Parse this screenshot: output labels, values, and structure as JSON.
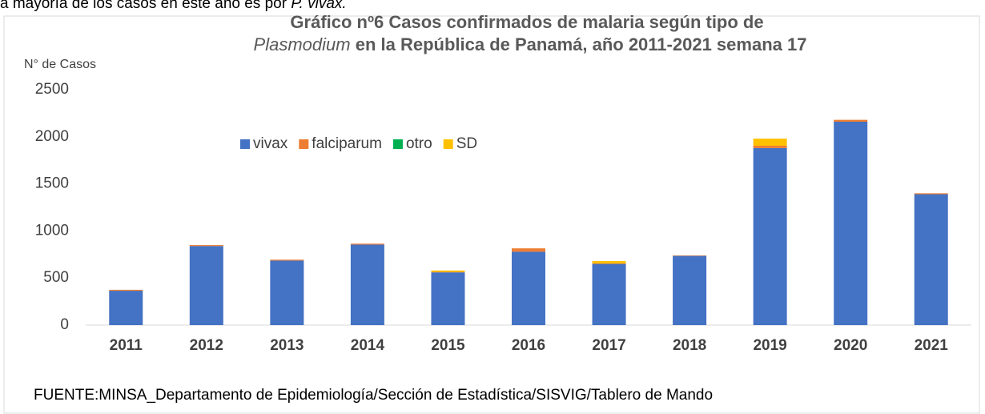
{
  "caption_fragment": [
    "a mayoría de los casos en este año es por ",
    "P. vivax."
  ],
  "chart_data": {
    "type": "stacked_bar",
    "title": [
      "Gráfico nº6 Casos confirmados de malaria según tipo de",
      "Plasmodium",
      " en la República de Panamá, año 2011-2021 semana 17"
    ],
    "y_label": "N° de Casos",
    "source": "FUENTE:MINSA_Departamento de Epidemiología/Sección de Estadística/SISVIG/Tablero de Mando",
    "categories": [
      "2011",
      "2012",
      "2013",
      "2014",
      "2015",
      "2016",
      "2017",
      "2018",
      "2019",
      "2020",
      "2021"
    ],
    "series": [
      {
        "name": "vivax",
        "color": "#4472c4",
        "values": [
          365,
          840,
          685,
          855,
          560,
          780,
          650,
          735,
          1880,
          2160,
          1390
        ]
      },
      {
        "name": "falciparum",
        "color": "#ed7d31",
        "values": [
          10,
          10,
          10,
          10,
          5,
          35,
          5,
          5,
          25,
          20,
          10
        ]
      },
      {
        "name": "otro",
        "color": "#00b050",
        "values": [
          0,
          0,
          0,
          0,
          0,
          0,
          0,
          0,
          0,
          0,
          0
        ]
      },
      {
        "name": "SD",
        "color": "#ffc000",
        "values": [
          0,
          0,
          0,
          0,
          15,
          0,
          25,
          0,
          75,
          0,
          0
        ]
      }
    ],
    "ylim": [
      0,
      2500
    ],
    "yticks": [
      0,
      500,
      1000,
      1500,
      2000,
      2500
    ],
    "grid": false,
    "legend": "top"
  }
}
